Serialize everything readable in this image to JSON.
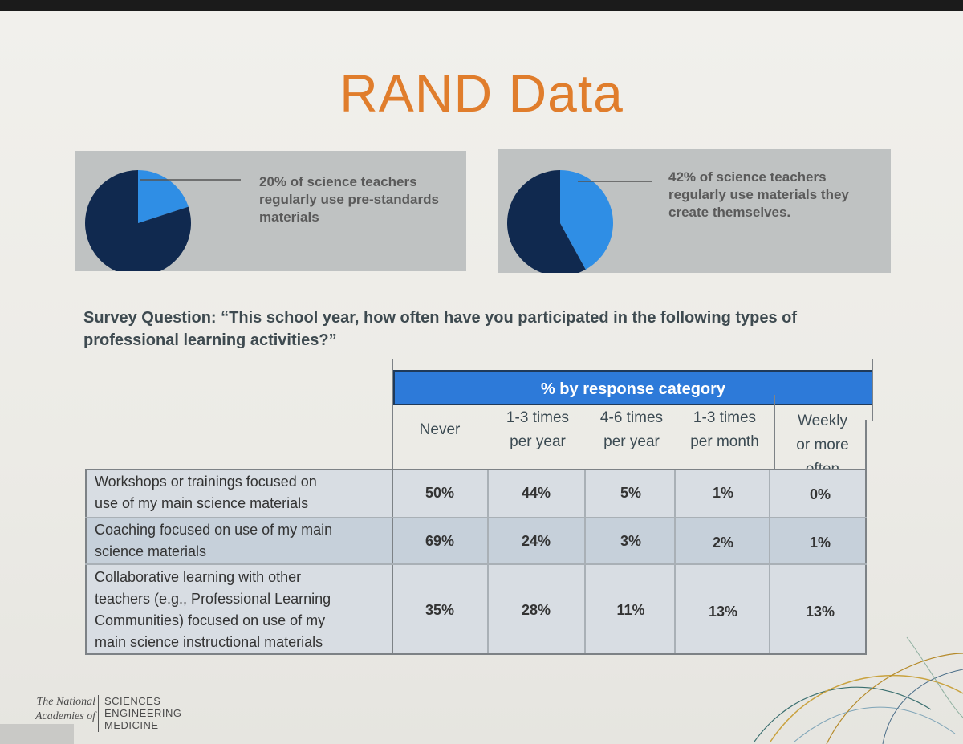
{
  "slide": {
    "title": "RAND Data"
  },
  "chart_data": [
    {
      "type": "pie",
      "slices": [
        {
          "value": 20,
          "color": "#2f8ee5"
        },
        {
          "value": 80,
          "color": "#10294f"
        }
      ],
      "annotation": "20% of science teachers regularly use pre-standards materials"
    },
    {
      "type": "pie",
      "slices": [
        {
          "value": 42,
          "color": "#2f8ee5"
        },
        {
          "value": 58,
          "color": "#10294f"
        }
      ],
      "annotation": "42% of science teachers regularly use materials they create themselves."
    },
    {
      "type": "table",
      "survey_question": "Survey Question: “This school year, how often have you participated in the following types of professional learning activities?”",
      "header": "% by response category",
      "columns": [
        "Never",
        "1-3 times per year",
        "4-6 times per year",
        "1-3 times per month",
        "Weekly or more often"
      ],
      "rows": [
        {
          "label": "Workshops or trainings focused on use of my main science materials",
          "values": [
            "50%",
            "44%",
            "5%",
            "1%",
            "0%"
          ]
        },
        {
          "label": "Coaching focused on use of my main science materials",
          "values": [
            "69%",
            "24%",
            "3%",
            "2%",
            "1%"
          ]
        },
        {
          "label": "Collaborative learning with other teachers (e.g., Professional Learning Communities) focused on use of my main science instructional materials",
          "values": [
            "35%",
            "28%",
            "11%",
            "13%",
            "13%"
          ]
        }
      ]
    }
  ],
  "footer": {
    "logo_left1": "The National",
    "logo_left2": "Academies of",
    "logo_right1": "SCIENCES",
    "logo_right2": "ENGINEERING",
    "logo_right3": "MEDICINE"
  },
  "pie_labels": {
    "p1": [
      "20% of science teachers",
      "regularly use pre-standards",
      "materials"
    ],
    "p2": [
      "42% of science teachers",
      "regularly use materials they",
      "create themselves."
    ]
  },
  "table_text": {
    "col_lines": [
      [
        "Never"
      ],
      [
        "1-3 times",
        "per year"
      ],
      [
        "4-6 times",
        "per year"
      ],
      [
        "1-3 times",
        "per month"
      ],
      [
        "Weekly",
        "or more",
        "often"
      ]
    ],
    "row_lines": [
      [
        "Workshops or trainings focused on",
        "use of my main science materials"
      ],
      [
        "Coaching focused on use of my main",
        "science materials"
      ],
      [
        "Collaborative learning with other",
        "teachers (e.g., Professional Learning",
        "Communities) focused on use of my",
        "main science instructional materials"
      ]
    ],
    "survey_lines": [
      "Survey Question: “This school year, how often have you participated in the following types of",
      "professional learning activities?”"
    ]
  }
}
